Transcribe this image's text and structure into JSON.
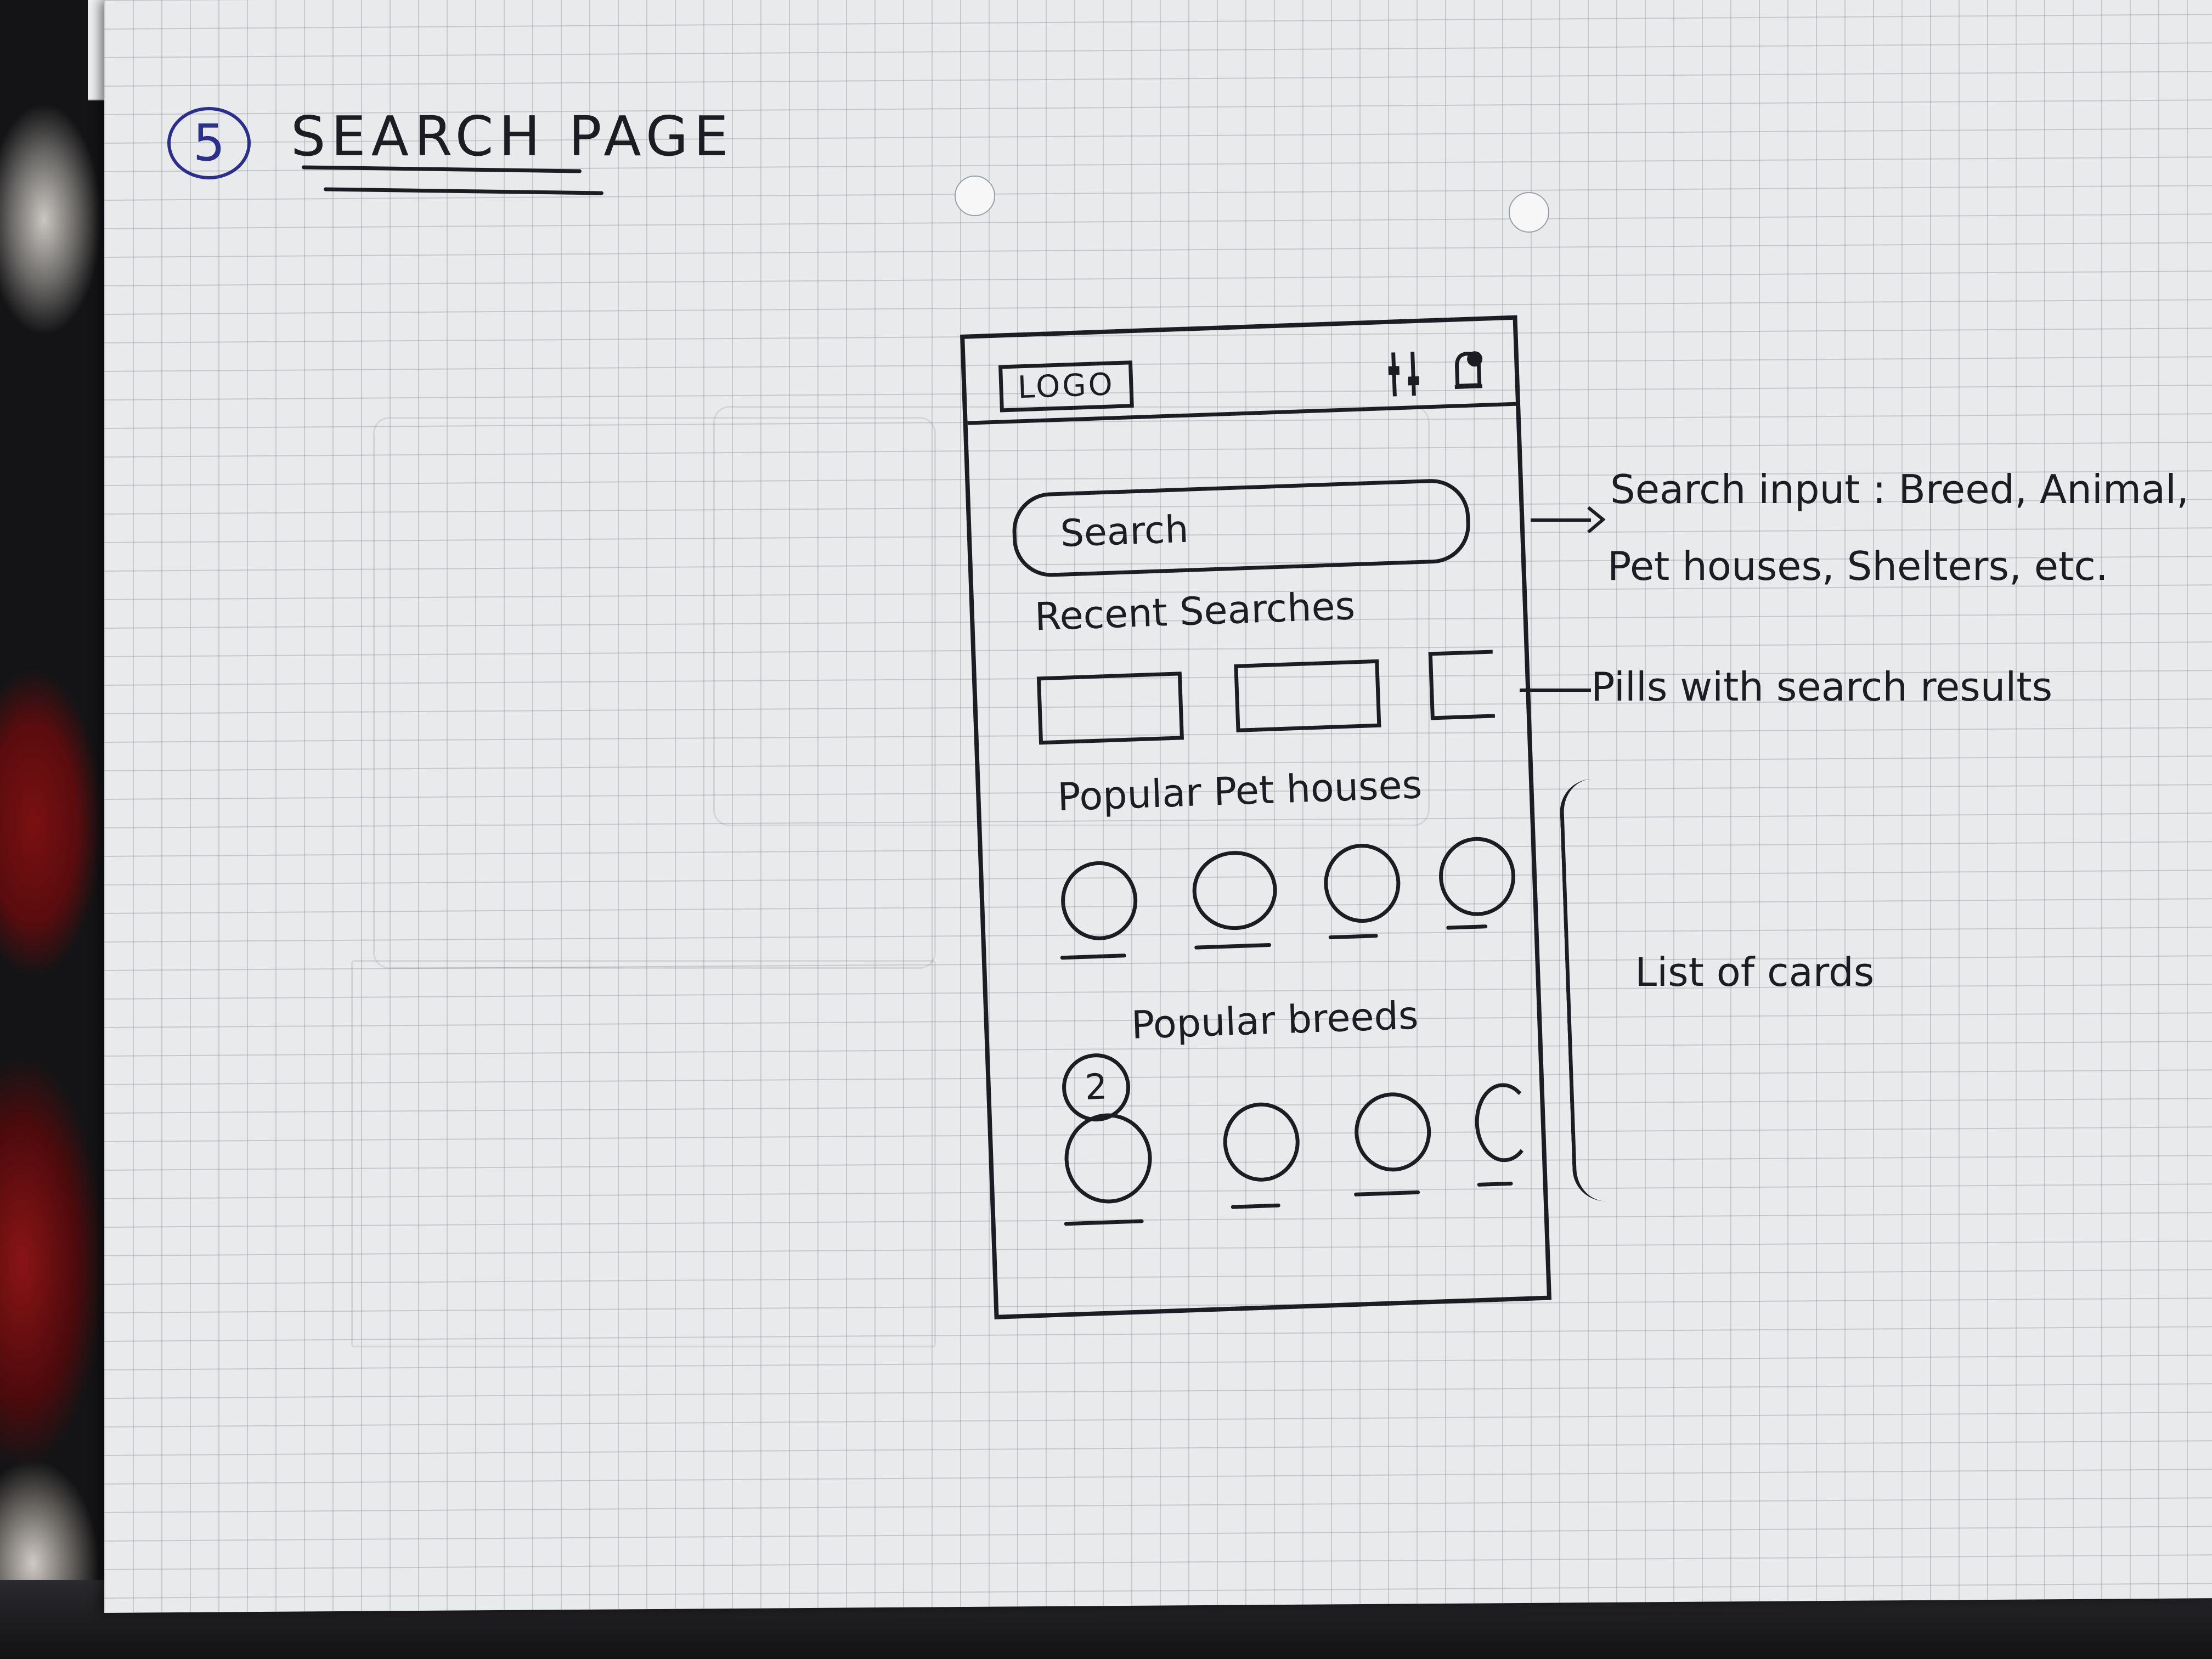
{
  "sheet": {
    "step_number": "5",
    "title": "SEARCH PAGE"
  },
  "wireframe": {
    "header": {
      "logo": "LOGO",
      "filter_icon": "sliders-icon",
      "notification_icon": "bell-icon"
    },
    "search": {
      "placeholder": "Search"
    },
    "recent_searches": {
      "label": "Recent Searches",
      "pill_count": 3
    },
    "popular_pet_houses": {
      "label": "Popular Pet houses",
      "card_count": 4
    },
    "popular_breeds": {
      "label": "Popular breeds",
      "card_count": 4,
      "badge": "2"
    }
  },
  "annotations": {
    "search_note_line1": "Search input : Breed, Animal,",
    "search_note_line2": "Pet houses, Shelters, etc.",
    "pills_note": "Pills with search results",
    "cards_note": "List of cards"
  },
  "colors": {
    "ink": "#1c1d22",
    "step_ink": "#2a2f8c",
    "paper": "#e9eaec",
    "grid": "#828c96"
  }
}
